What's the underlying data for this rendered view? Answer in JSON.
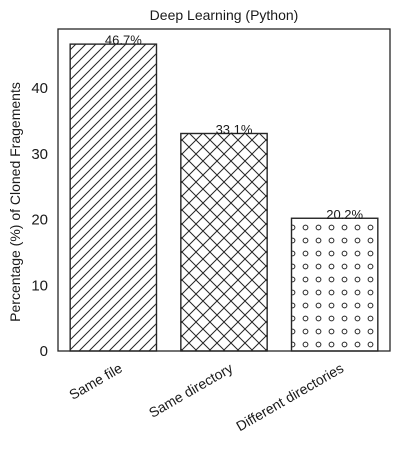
{
  "chart_data": {
    "type": "bar",
    "title": "Deep Learning (Python)",
    "xlabel": "",
    "ylabel": "Percentage (%) of Cloned Fragements",
    "categories": [
      "Same file",
      "Same directory",
      "Different directories"
    ],
    "values": [
      46.7,
      33.1,
      20.2
    ],
    "data_labels": [
      "46.7%",
      "33.1%",
      "20.2%"
    ],
    "patterns": [
      "diagonal-hatch",
      "cross-hatch",
      "circles"
    ],
    "ylim": [
      0,
      49
    ],
    "yticks": [
      0,
      10,
      20,
      30,
      40
    ],
    "grid": false,
    "colors": {
      "bar_fill": "#ffffff",
      "bar_edge": "#262626",
      "text": "#1a1a1a"
    }
  }
}
